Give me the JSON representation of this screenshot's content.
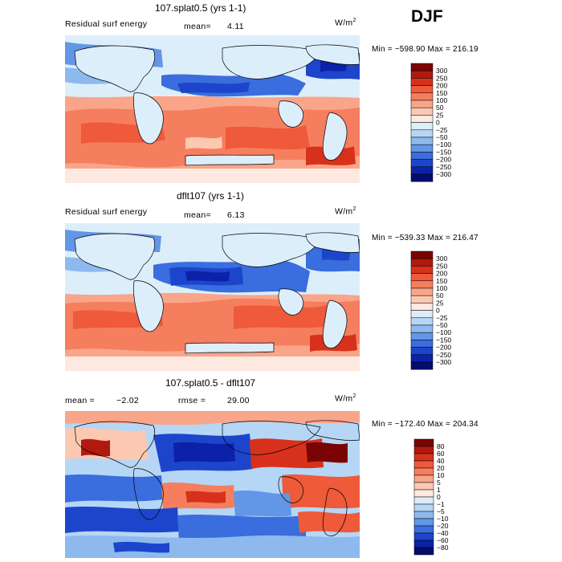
{
  "season": "DJF",
  "units": "W/m",
  "units_sup": "2",
  "panels": [
    {
      "title": "107.splat0.5 (yrs 1-1)",
      "field": "Residual surf energy",
      "stat_label": "mean=",
      "stat_value": "4.11",
      "minmax": "Min = −598.90 Max = 216.19",
      "levels": [
        "300",
        "250",
        "200",
        "150",
        "100",
        "50",
        "25",
        "0",
        "−25",
        "−50",
        "−100",
        "−150",
        "−200",
        "−250",
        "−300"
      ],
      "colors": [
        "#7a0403",
        "#b01a0e",
        "#d8311b",
        "#ee5a3a",
        "#f57e5e",
        "#f9a58a",
        "#fcc8b2",
        "#fde9df",
        "#ddeefb",
        "#b6d6f5",
        "#8db9ee",
        "#6296e6",
        "#3a6ddd",
        "#1d45cc",
        "#0a21a8",
        "#040c6e"
      ]
    },
    {
      "title": "dflt107 (yrs 1-1)",
      "field": "Residual surf energy",
      "stat_label": "mean=",
      "stat_value": "6.13",
      "minmax": "Min = −539.33 Max = 216.47",
      "levels": [
        "300",
        "250",
        "200",
        "150",
        "100",
        "50",
        "25",
        "0",
        "−25",
        "−50",
        "−100",
        "−150",
        "−200",
        "−250",
        "−300"
      ],
      "colors": [
        "#7a0403",
        "#b01a0e",
        "#d8311b",
        "#ee5a3a",
        "#f57e5e",
        "#f9a58a",
        "#fcc8b2",
        "#fde9df",
        "#ddeefb",
        "#b6d6f5",
        "#8db9ee",
        "#6296e6",
        "#3a6ddd",
        "#1d45cc",
        "#0a21a8",
        "#040c6e"
      ]
    },
    {
      "title": "107.splat0.5 - dflt107",
      "stat_label": "mean =",
      "stat_value": "−2.02",
      "stat2_label": "rmse =",
      "stat2_value": "29.00",
      "minmax": "Min = −172.40 Max = 204.34",
      "levels": [
        "80",
        "60",
        "40",
        "20",
        "10",
        "5",
        "1",
        "0",
        "−1",
        "−5",
        "−10",
        "−20",
        "−40",
        "−60",
        "−80"
      ],
      "colors": [
        "#7a0403",
        "#b01a0e",
        "#d8311b",
        "#ee5a3a",
        "#f57e5e",
        "#f9a58a",
        "#fcc8b2",
        "#fde9df",
        "#ddeefb",
        "#b6d6f5",
        "#8db9ee",
        "#6296e6",
        "#3a6ddd",
        "#1d45cc",
        "#0a21a8",
        "#040c6e"
      ]
    }
  ]
}
